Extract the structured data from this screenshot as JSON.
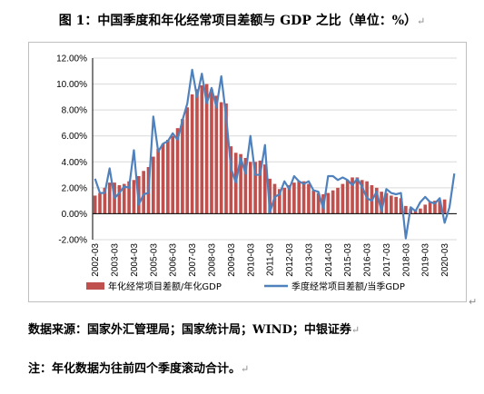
{
  "title": "图 1：中国季度和年化经常项目差额与 GDP 之比（单位：%）",
  "source": "数据来源：国家外汇管理局；国家统计局；WIND；中银证券",
  "note": "注：年化数据为往前四个季度滚动合计。",
  "paragraph_mark": "↵",
  "colors": {
    "bar": "#c0504d",
    "line": "#4f81bd",
    "grid": "#d9d9d9",
    "axis": "#000000"
  },
  "chart_data": {
    "type": "bar",
    "ylim": [
      -2,
      12
    ],
    "yticks": [
      "-2.00%",
      "0.00%",
      "2.00%",
      "4.00%",
      "6.00%",
      "8.00%",
      "10.00%",
      "12.00%"
    ],
    "xticks": [
      "2002-03",
      "2003-03",
      "2004-03",
      "2005-03",
      "2006-03",
      "2007-03",
      "2008-03",
      "2009-03",
      "2010-03",
      "2011-03",
      "2012-03",
      "2013-03",
      "2014-03",
      "2015-03",
      "2016-03",
      "2017-03",
      "2018-03",
      "2019-03",
      "2020-03"
    ],
    "grid": true,
    "legend_position": "bottom",
    "series": [
      {
        "name": "年化经常项目差额/年化GDP",
        "type": "bar",
        "values": [
          1.4,
          1.6,
          2.0,
          2.4,
          2.4,
          2.2,
          2.3,
          2.5,
          2.6,
          2.9,
          3.3,
          3.6,
          4.4,
          5.0,
          5.4,
          5.7,
          6.0,
          6.6,
          7.3,
          8.2,
          9.2,
          9.6,
          9.9,
          10.0,
          9.6,
          9.1,
          8.6,
          8.5,
          5.2,
          4.7,
          4.6,
          4.3,
          4.0,
          4.0,
          4.1,
          3.8,
          2.7,
          2.3,
          1.9,
          2.0,
          2.2,
          2.4,
          2.5,
          2.5,
          2.3,
          1.8,
          1.6,
          1.5,
          1.6,
          1.8,
          2.0,
          2.3,
          2.6,
          2.8,
          2.8,
          2.6,
          2.5,
          2.2,
          2.0,
          1.7,
          1.6,
          1.4,
          1.3,
          1.2,
          0.6,
          0.4,
          0.3,
          0.4,
          0.7,
          0.9,
          1.0,
          1.0,
          1.1
        ]
      },
      {
        "name": "季度经常项目差额/当季GDP",
        "type": "line",
        "values": [
          2.7,
          1.6,
          1.6,
          3.5,
          1.2,
          1.6,
          2.1,
          2.0,
          4.9,
          0.7,
          1.5,
          1.6,
          7.5,
          4.8,
          5.4,
          5.6,
          6.2,
          5.7,
          7.2,
          8.5,
          11.1,
          9.0,
          10.8,
          8.5,
          9.7,
          8.2,
          10.6,
          7.5,
          3.5,
          2.4,
          4.3,
          3.1,
          6.0,
          3.0,
          3.0,
          5.3,
          0.1,
          1.3,
          1.5,
          2.5,
          1.9,
          2.9,
          2.5,
          2.3,
          2.5,
          1.8,
          1.7,
          0.4,
          2.9,
          2.9,
          2.6,
          2.8,
          2.6,
          2.2,
          2.7,
          2.1,
          1.2,
          1.0,
          1.7,
          0.2,
          1.9,
          1.6,
          1.5,
          1.6,
          -1.9,
          0.5,
          0.2,
          0.9,
          1.3,
          0.9,
          0.8,
          1.2,
          -0.7,
          0.5,
          3.1
        ]
      }
    ]
  }
}
